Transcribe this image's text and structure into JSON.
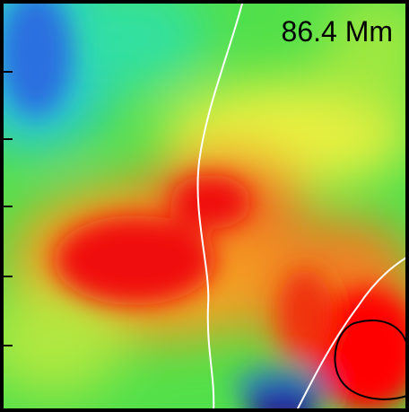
{
  "panel": {
    "label": "86.4 Mm"
  }
}
